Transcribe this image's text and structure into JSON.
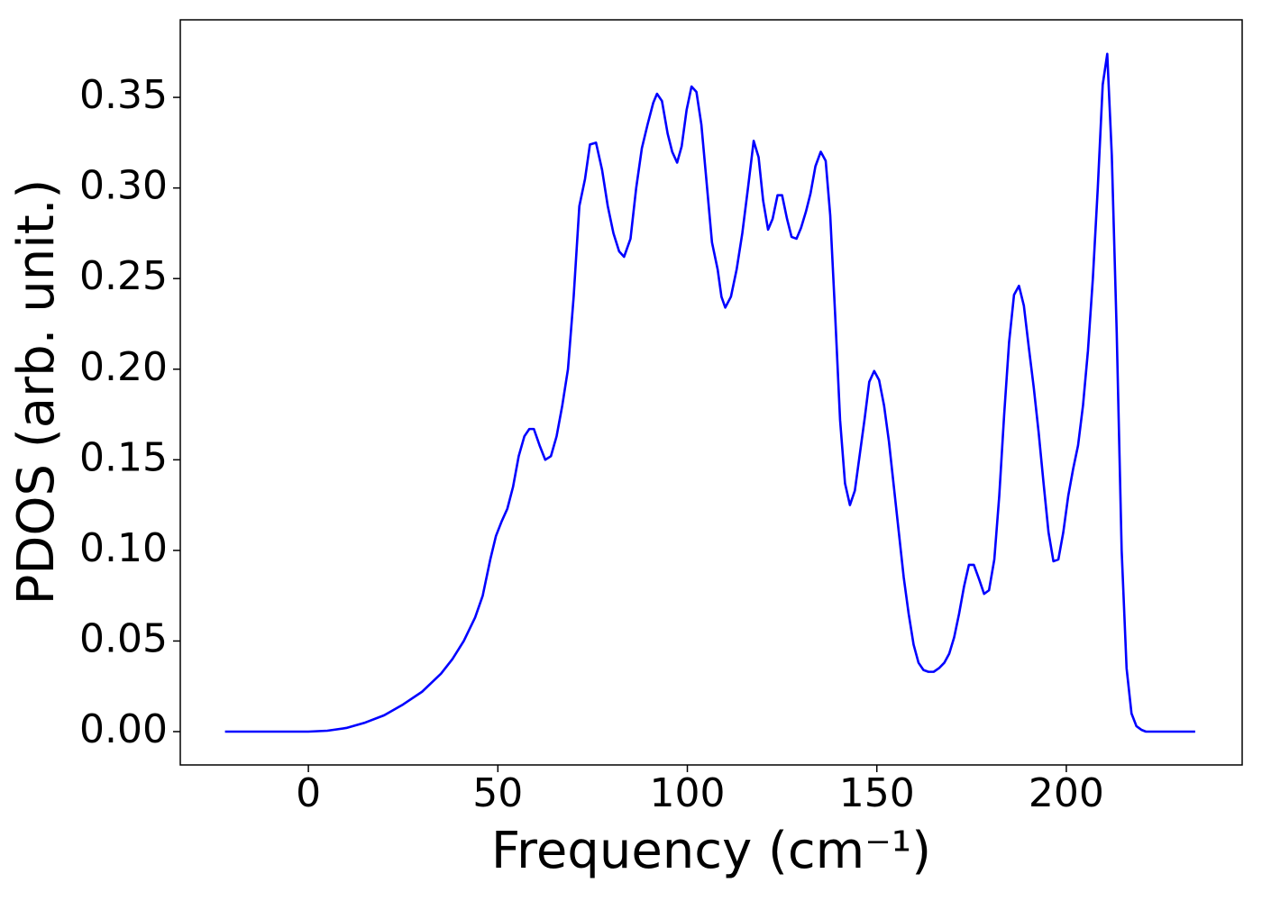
{
  "chart_data": {
    "type": "line",
    "x_label": "Frequency (cm⁻¹)",
    "y_label": "PDOS (arb. unit.)",
    "x": [
      -22,
      -10,
      0,
      5,
      10,
      15,
      20,
      25,
      30,
      35,
      38,
      41,
      44,
      46,
      48,
      49.5,
      51,
      52.5,
      54,
      55.5,
      57,
      58.3,
      59.5,
      61,
      62.5,
      64,
      65.5,
      67,
      68.5,
      70,
      71.5,
      73,
      74.3,
      75.9,
      77.5,
      79,
      80.5,
      82,
      83.3,
      85,
      86.5,
      88,
      89.5,
      91,
      92,
      93.3,
      94.8,
      96,
      97.3,
      98.5,
      99.8,
      101.1,
      102.4,
      103.7,
      105,
      106.5,
      108,
      109,
      110,
      111.5,
      113,
      114.5,
      116,
      117.5,
      118.8,
      120,
      121.3,
      122.5,
      123.8,
      125,
      126.3,
      127.5,
      128.8,
      130,
      131.3,
      132.5,
      133.8,
      135.2,
      136.5,
      137.7,
      139,
      140.3,
      141.6,
      142.9,
      144.2,
      145.5,
      146.8,
      148,
      149.3,
      150.6,
      151.9,
      153.2,
      154.5,
      155.8,
      157.1,
      158.4,
      159.7,
      161,
      162.3,
      163.6,
      165,
      166.4,
      167.8,
      169.1,
      170.4,
      171.7,
      173,
      174.3,
      175.6,
      177,
      178.3,
      179.6,
      181,
      182.3,
      183.6,
      184.9,
      186.2,
      187.5,
      188.8,
      190.1,
      191.4,
      192.7,
      194,
      195.3,
      196.6,
      197.9,
      199.2,
      200.5,
      201.8,
      203.1,
      204.4,
      205.7,
      207,
      208.3,
      209.6,
      210.8,
      212,
      213.3,
      214.6,
      215.9,
      217.2,
      218.5,
      219.8,
      221,
      234
    ],
    "series": [
      {
        "color": "#0000ff",
        "values": [
          0,
          0,
          0,
          0.0005,
          0.002,
          0.005,
          0.009,
          0.015,
          0.022,
          0.032,
          0.04,
          0.05,
          0.063,
          0.075,
          0.095,
          0.108,
          0.116,
          0.123,
          0.135,
          0.152,
          0.163,
          0.167,
          0.167,
          0.158,
          0.15,
          0.152,
          0.163,
          0.18,
          0.2,
          0.24,
          0.29,
          0.305,
          0.324,
          0.325,
          0.31,
          0.29,
          0.275,
          0.265,
          0.262,
          0.272,
          0.3,
          0.322,
          0.335,
          0.347,
          0.352,
          0.348,
          0.33,
          0.32,
          0.314,
          0.323,
          0.343,
          0.356,
          0.353,
          0.335,
          0.305,
          0.27,
          0.255,
          0.24,
          0.234,
          0.24,
          0.255,
          0.275,
          0.3,
          0.326,
          0.317,
          0.293,
          0.277,
          0.283,
          0.296,
          0.296,
          0.283,
          0.273,
          0.272,
          0.278,
          0.287,
          0.297,
          0.312,
          0.32,
          0.315,
          0.285,
          0.23,
          0.172,
          0.137,
          0.125,
          0.133,
          0.153,
          0.173,
          0.193,
          0.199,
          0.194,
          0.18,
          0.16,
          0.135,
          0.11,
          0.085,
          0.065,
          0.048,
          0.038,
          0.034,
          0.033,
          0.033,
          0.035,
          0.038,
          0.043,
          0.052,
          0.065,
          0.08,
          0.092,
          0.092,
          0.084,
          0.076,
          0.078,
          0.095,
          0.13,
          0.175,
          0.215,
          0.241,
          0.246,
          0.235,
          0.212,
          0.19,
          0.165,
          0.137,
          0.11,
          0.094,
          0.095,
          0.11,
          0.13,
          0.145,
          0.158,
          0.18,
          0.21,
          0.25,
          0.3,
          0.357,
          0.374,
          0.318,
          0.22,
          0.1,
          0.035,
          0.01,
          0.003,
          0.001,
          0,
          0
        ]
      }
    ],
    "xlim": [
      -33.8,
      246.4
    ],
    "ylim": [
      -0.0184,
      0.3928
    ],
    "xticks": [
      0,
      50,
      100,
      150,
      200
    ],
    "yticks": [
      {
        "value": 0,
        "label": "0.00"
      },
      0.05,
      {
        "value": 0.1,
        "label": "0.10"
      },
      0.15,
      {
        "value": 0.2,
        "label": "0.20"
      },
      0.25,
      {
        "value": 0.3,
        "label": "0.30"
      },
      0.35
    ],
    "grid": false
  }
}
